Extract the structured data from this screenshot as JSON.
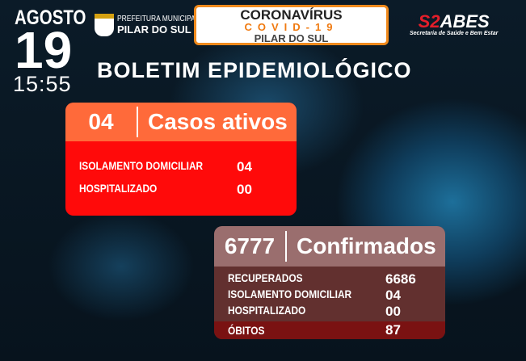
{
  "header": {
    "month": "AGOSTO",
    "day": "19",
    "time": "15:55",
    "prefeitura_line1": "PREFEITURA MUNICIPAL",
    "prefeitura_line2": "PILAR DO SUL",
    "covid_line1": "CORONAVÍRUS",
    "covid_line2": "COVID-19",
    "covid_line3": "PILAR DO SUL",
    "sabes_logo_a": "S2",
    "sabes_logo_b": "ABES",
    "sabes_sub": "Secretaria de Saúde e Bem Estar",
    "title": "BOLETIM EPIDEMIOLÓGICO"
  },
  "active": {
    "count": "04",
    "label": "Casos ativos",
    "rows": [
      {
        "label": "ISOLAMENTO DOMICILIAR",
        "value": "04"
      },
      {
        "label": "HOSPITALIZADO",
        "value": "00"
      }
    ]
  },
  "confirmed": {
    "count": "6777",
    "label": "Confirmados",
    "rows": [
      {
        "label": "RECUPERADOS",
        "value": "6686"
      },
      {
        "label": "ISOLAMENTO DOMICILIAR",
        "value": "04"
      },
      {
        "label": "HOSPITALIZADO",
        "value": "00"
      }
    ],
    "deaths_label": "ÓBITOS",
    "deaths_value": "87"
  },
  "colors": {
    "active_header": "#ff6a3a",
    "active_body": "#ff0a0a",
    "confirmed_header": "#9a6e6e",
    "confirmed_body": "#62302f",
    "deaths_row": "#7a1212",
    "covid_accent": "#f07a10"
  }
}
